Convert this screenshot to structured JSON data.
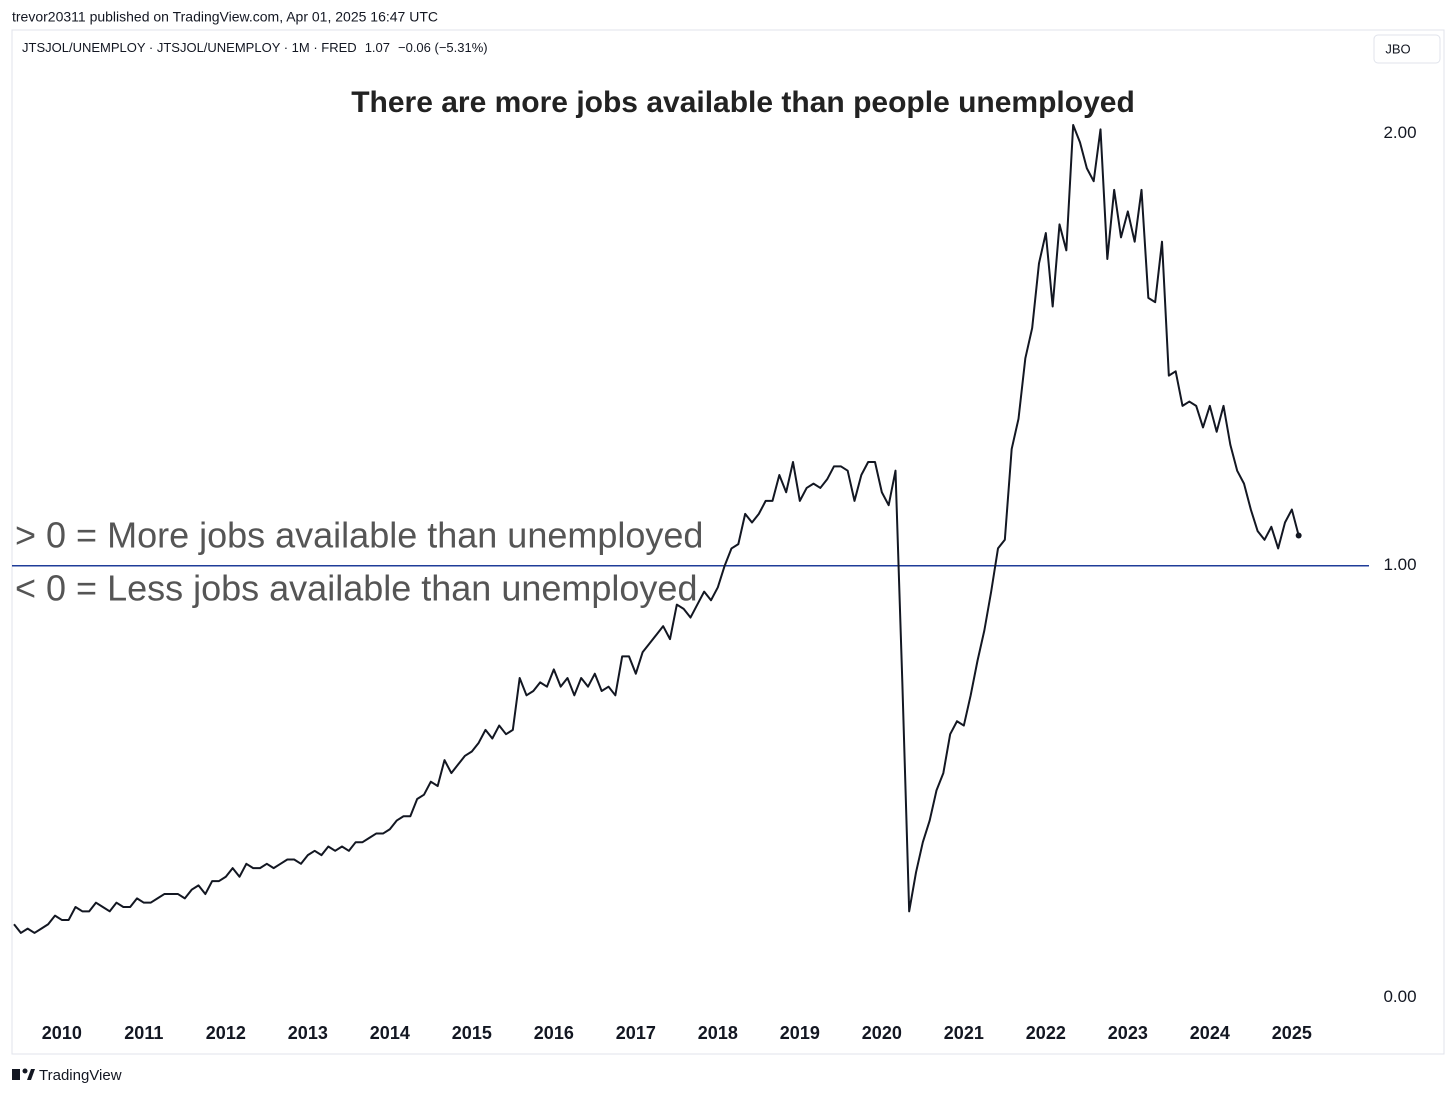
{
  "header": {
    "publisher": "trevor20311 published on TradingView.com, Apr 01, 2025 16:47 UTC",
    "symbol": "JTSJOL/UNEMPLOY · JTSJOL/UNEMPLOY · 1M · FRED",
    "last": "1.07",
    "change": "−0.06 (−5.31%)",
    "button": "JBO"
  },
  "chart_data": {
    "type": "line",
    "title": "There are more jobs available than people unemployed",
    "annotations": [
      "> 0 = More jobs available than unemployed",
      "< 0 = Less jobs available than unemployed"
    ],
    "hline": 1,
    "hline_color": "#1f3c99",
    "categories": [
      null,
      null,
      null,
      null,
      null,
      null,
      null,
      "2010",
      null,
      null,
      null,
      null,
      null,
      null,
      null,
      null,
      null,
      null,
      null,
      "2011",
      null,
      null,
      null,
      null,
      null,
      null,
      null,
      null,
      null,
      null,
      null,
      "2012",
      null,
      null,
      null,
      null,
      null,
      null,
      null,
      null,
      null,
      null,
      null,
      "2013",
      null,
      null,
      null,
      null,
      null,
      null,
      null,
      null,
      null,
      null,
      null,
      "2014",
      null,
      null,
      null,
      null,
      null,
      null,
      null,
      null,
      null,
      null,
      null,
      "2015",
      null,
      null,
      null,
      null,
      null,
      null,
      null,
      null,
      null,
      null,
      null,
      "2016",
      null,
      null,
      null,
      null,
      null,
      null,
      null,
      null,
      null,
      null,
      null,
      "2017",
      null,
      null,
      null,
      null,
      null,
      null,
      null,
      null,
      null,
      null,
      null,
      "2018",
      null,
      null,
      null,
      null,
      null,
      null,
      null,
      null,
      null,
      null,
      null,
      "2019",
      null,
      null,
      null,
      null,
      null,
      null,
      null,
      null,
      null,
      null,
      null,
      "2020",
      null,
      null,
      null,
      null,
      null,
      null,
      null,
      null,
      null,
      null,
      null,
      "2021",
      null,
      null,
      null,
      null,
      null,
      null,
      null,
      null,
      null,
      null,
      null,
      "2022",
      null,
      null,
      null,
      null,
      null,
      null,
      null,
      null,
      null,
      null,
      null,
      "2023",
      null,
      null,
      null,
      null,
      null,
      null,
      null,
      null,
      null,
      null,
      null,
      "2024",
      null,
      null,
      null,
      null,
      null,
      null,
      null,
      null,
      null,
      null,
      null,
      "2025",
      null
    ],
    "values": [
      0.17,
      0.15,
      0.16,
      0.15,
      0.16,
      0.17,
      0.19,
      0.18,
      0.18,
      0.21,
      0.2,
      0.2,
      0.22,
      0.21,
      0.2,
      0.22,
      0.21,
      0.21,
      0.23,
      0.22,
      0.22,
      0.23,
      0.24,
      0.24,
      0.24,
      0.23,
      0.25,
      0.26,
      0.24,
      0.27,
      0.27,
      0.28,
      0.3,
      0.28,
      0.31,
      0.3,
      0.3,
      0.31,
      0.3,
      0.31,
      0.32,
      0.32,
      0.31,
      0.33,
      0.34,
      0.33,
      0.35,
      0.34,
      0.35,
      0.34,
      0.36,
      0.36,
      0.37,
      0.38,
      0.38,
      0.39,
      0.41,
      0.42,
      0.42,
      0.46,
      0.47,
      0.5,
      0.49,
      0.55,
      0.52,
      0.54,
      0.56,
      0.57,
      0.59,
      0.62,
      0.6,
      0.63,
      0.61,
      0.62,
      0.74,
      0.7,
      0.71,
      0.73,
      0.72,
      0.76,
      0.72,
      0.74,
      0.7,
      0.74,
      0.72,
      0.75,
      0.71,
      0.72,
      0.7,
      0.79,
      0.79,
      0.75,
      0.8,
      0.82,
      0.84,
      0.86,
      0.83,
      0.91,
      0.9,
      0.88,
      0.91,
      0.94,
      0.92,
      0.95,
      1.0,
      1.04,
      1.05,
      1.12,
      1.1,
      1.12,
      1.15,
      1.15,
      1.21,
      1.17,
      1.24,
      1.15,
      1.18,
      1.19,
      1.18,
      1.2,
      1.23,
      1.23,
      1.22,
      1.15,
      1.21,
      1.24,
      1.24,
      1.17,
      1.14,
      1.22,
      0.73,
      0.2,
      0.29,
      0.36,
      0.41,
      0.48,
      0.52,
      0.61,
      0.64,
      0.63,
      0.7,
      0.78,
      0.85,
      0.94,
      1.04,
      1.06,
      1.27,
      1.34,
      1.48,
      1.55,
      1.7,
      1.77,
      1.6,
      1.79,
      1.73,
      2.02,
      1.98,
      1.92,
      1.89,
      2.01,
      1.71,
      1.87,
      1.76,
      1.82,
      1.75,
      1.87,
      1.62,
      1.61,
      1.75,
      1.44,
      1.45,
      1.37,
      1.38,
      1.37,
      1.32,
      1.37,
      1.31,
      1.37,
      1.28,
      1.22,
      1.19,
      1.13,
      1.08,
      1.06,
      1.09,
      1.04,
      1.1,
      1.13,
      1.07
    ],
    "color": "#131722",
    "ylim": [
      -0.04,
      2.24
    ],
    "yticks": [
      {
        "value": 0,
        "label": "0.00"
      },
      {
        "value": 1,
        "label": "1.00"
      },
      {
        "value": 2,
        "label": "2.00"
      }
    ],
    "grid": false
  },
  "footer": "TradingView"
}
